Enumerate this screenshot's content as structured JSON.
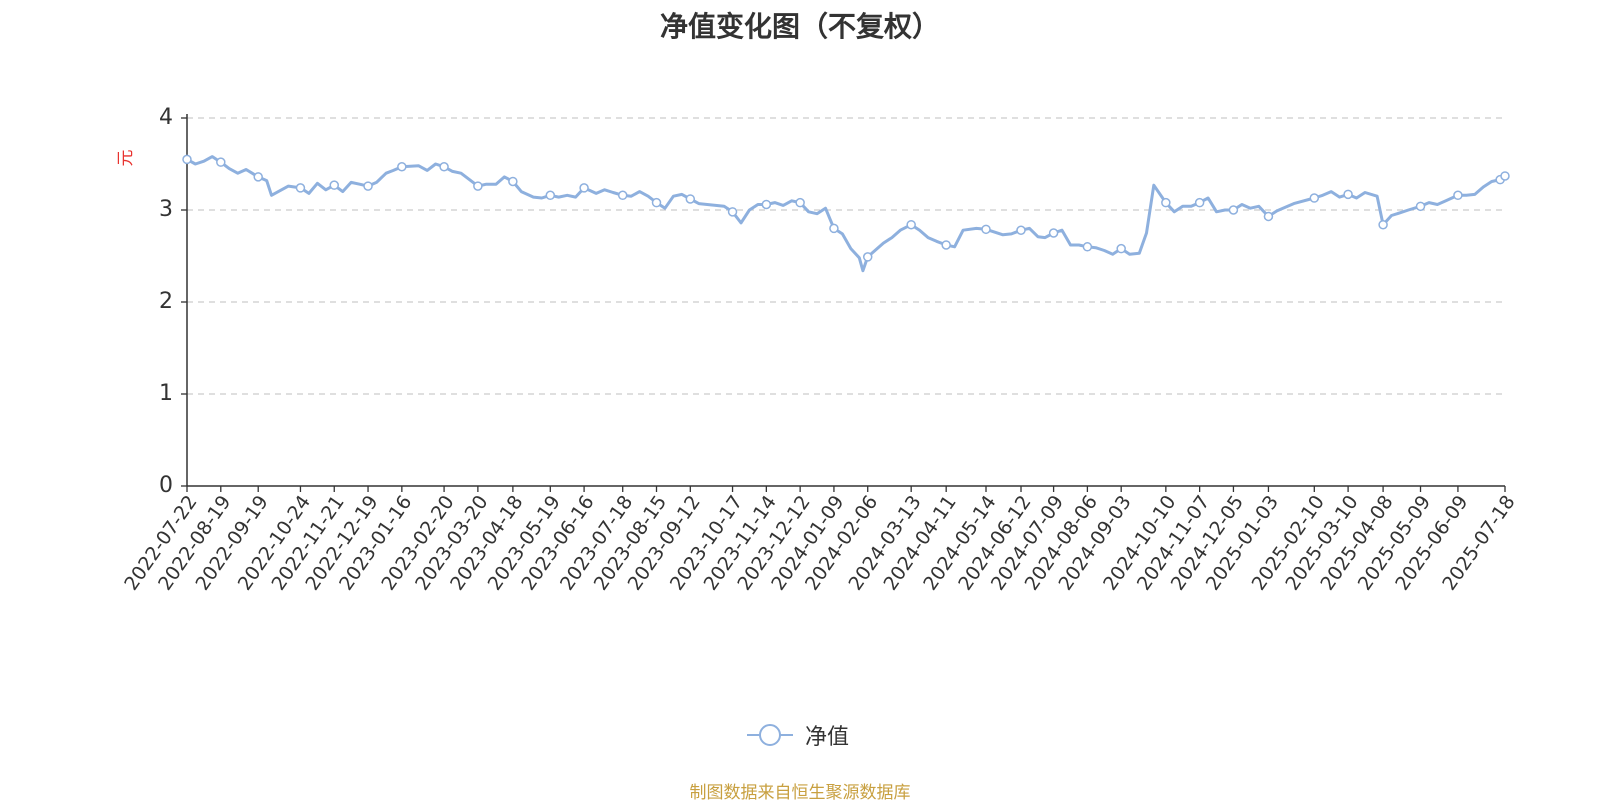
{
  "chart_data": {
    "type": "line",
    "title": "净值变化图（不复权）",
    "ylabel": "元",
    "ylim": [
      0,
      4
    ],
    "yticks": [
      0,
      1,
      2,
      3,
      4
    ],
    "grid": true,
    "legend_position": "bottom-center",
    "x_tick_labels": [
      "2022-07-22",
      "2022-08-19",
      "2022-09-19",
      "2022-10-24",
      "2022-11-21",
      "2022-12-19",
      "2023-01-16",
      "2023-02-20",
      "2023-03-20",
      "2023-04-18",
      "2023-05-19",
      "2023-06-16",
      "2023-07-18",
      "2023-08-15",
      "2023-09-12",
      "2023-10-17",
      "2023-11-14",
      "2023-12-12",
      "2024-01-09",
      "2024-02-06",
      "2024-03-13",
      "2024-04-11",
      "2024-05-14",
      "2024-06-12",
      "2024-07-09",
      "2024-08-06",
      "2024-09-03",
      "2024-10-10",
      "2024-11-07",
      "2024-12-05",
      "2025-01-03",
      "2025-02-10",
      "2025-03-10",
      "2025-04-08",
      "2025-05-09",
      "2025-06-09",
      "2025-07-18"
    ],
    "series": [
      {
        "name": "净值",
        "color": "#8eb0de",
        "points": [
          {
            "x": "2022-07-22",
            "y": 3.55
          },
          {
            "x": "2022-07-29",
            "y": 3.5
          },
          {
            "x": "2022-08-05",
            "y": 3.53
          },
          {
            "x": "2022-08-12",
            "y": 3.58
          },
          {
            "x": "2022-08-19",
            "y": 3.52
          },
          {
            "x": "2022-08-26",
            "y": 3.45
          },
          {
            "x": "2022-09-02",
            "y": 3.4
          },
          {
            "x": "2022-09-09",
            "y": 3.44
          },
          {
            "x": "2022-09-19",
            "y": 3.36
          },
          {
            "x": "2022-09-26",
            "y": 3.32
          },
          {
            "x": "2022-09-30",
            "y": 3.16
          },
          {
            "x": "2022-10-14",
            "y": 3.26
          },
          {
            "x": "2022-10-24",
            "y": 3.24
          },
          {
            "x": "2022-10-31",
            "y": 3.18
          },
          {
            "x": "2022-11-07",
            "y": 3.29
          },
          {
            "x": "2022-11-14",
            "y": 3.22
          },
          {
            "x": "2022-11-21",
            "y": 3.27
          },
          {
            "x": "2022-11-28",
            "y": 3.2
          },
          {
            "x": "2022-12-05",
            "y": 3.3
          },
          {
            "x": "2022-12-12",
            "y": 3.28
          },
          {
            "x": "2022-12-19",
            "y": 3.26
          },
          {
            "x": "2022-12-26",
            "y": 3.3
          },
          {
            "x": "2023-01-03",
            "y": 3.4
          },
          {
            "x": "2023-01-09",
            "y": 3.43
          },
          {
            "x": "2023-01-16",
            "y": 3.47
          },
          {
            "x": "2023-01-30",
            "y": 3.48
          },
          {
            "x": "2023-02-06",
            "y": 3.43
          },
          {
            "x": "2023-02-13",
            "y": 3.5
          },
          {
            "x": "2023-02-20",
            "y": 3.47
          },
          {
            "x": "2023-02-27",
            "y": 3.42
          },
          {
            "x": "2023-03-06",
            "y": 3.4
          },
          {
            "x": "2023-03-13",
            "y": 3.33
          },
          {
            "x": "2023-03-20",
            "y": 3.26
          },
          {
            "x": "2023-03-27",
            "y": 3.28
          },
          {
            "x": "2023-04-04",
            "y": 3.28
          },
          {
            "x": "2023-04-11",
            "y": 3.36
          },
          {
            "x": "2023-04-18",
            "y": 3.31
          },
          {
            "x": "2023-04-25",
            "y": 3.2
          },
          {
            "x": "2023-05-05",
            "y": 3.14
          },
          {
            "x": "2023-05-12",
            "y": 3.13
          },
          {
            "x": "2023-05-19",
            "y": 3.16
          },
          {
            "x": "2023-05-26",
            "y": 3.14
          },
          {
            "x": "2023-06-02",
            "y": 3.16
          },
          {
            "x": "2023-06-09",
            "y": 3.14
          },
          {
            "x": "2023-06-16",
            "y": 3.24
          },
          {
            "x": "2023-06-26",
            "y": 3.18
          },
          {
            "x": "2023-07-03",
            "y": 3.22
          },
          {
            "x": "2023-07-10",
            "y": 3.19
          },
          {
            "x": "2023-07-18",
            "y": 3.16
          },
          {
            "x": "2023-07-25",
            "y": 3.15
          },
          {
            "x": "2023-08-01",
            "y": 3.2
          },
          {
            "x": "2023-08-08",
            "y": 3.15
          },
          {
            "x": "2023-08-15",
            "y": 3.08
          },
          {
            "x": "2023-08-22",
            "y": 3.02
          },
          {
            "x": "2023-08-29",
            "y": 3.15
          },
          {
            "x": "2023-09-05",
            "y": 3.17
          },
          {
            "x": "2023-09-12",
            "y": 3.12
          },
          {
            "x": "2023-09-19",
            "y": 3.07
          },
          {
            "x": "2023-09-26",
            "y": 3.06
          },
          {
            "x": "2023-10-10",
            "y": 3.04
          },
          {
            "x": "2023-10-17",
            "y": 2.98
          },
          {
            "x": "2023-10-24",
            "y": 2.86
          },
          {
            "x": "2023-10-31",
            "y": 3.0
          },
          {
            "x": "2023-11-07",
            "y": 3.06
          },
          {
            "x": "2023-11-14",
            "y": 3.06
          },
          {
            "x": "2023-11-21",
            "y": 3.08
          },
          {
            "x": "2023-11-28",
            "y": 3.05
          },
          {
            "x": "2023-12-05",
            "y": 3.1
          },
          {
            "x": "2023-12-12",
            "y": 3.08
          },
          {
            "x": "2023-12-19",
            "y": 2.98
          },
          {
            "x": "2023-12-26",
            "y": 2.96
          },
          {
            "x": "2024-01-02",
            "y": 3.02
          },
          {
            "x": "2024-01-09",
            "y": 2.8
          },
          {
            "x": "2024-01-16",
            "y": 2.74
          },
          {
            "x": "2024-01-23",
            "y": 2.58
          },
          {
            "x": "2024-01-30",
            "y": 2.48
          },
          {
            "x": "2024-02-02",
            "y": 2.34
          },
          {
            "x": "2024-02-06",
            "y": 2.49
          },
          {
            "x": "2024-02-19",
            "y": 2.64
          },
          {
            "x": "2024-02-26",
            "y": 2.7
          },
          {
            "x": "2024-03-04",
            "y": 2.78
          },
          {
            "x": "2024-03-13",
            "y": 2.84
          },
          {
            "x": "2024-03-20",
            "y": 2.78
          },
          {
            "x": "2024-03-27",
            "y": 2.7
          },
          {
            "x": "2024-04-03",
            "y": 2.66
          },
          {
            "x": "2024-04-11",
            "y": 2.62
          },
          {
            "x": "2024-04-18",
            "y": 2.6
          },
          {
            "x": "2024-04-25",
            "y": 2.78
          },
          {
            "x": "2024-05-06",
            "y": 2.8
          },
          {
            "x": "2024-05-14",
            "y": 2.79
          },
          {
            "x": "2024-05-21",
            "y": 2.76
          },
          {
            "x": "2024-05-28",
            "y": 2.73
          },
          {
            "x": "2024-06-04",
            "y": 2.74
          },
          {
            "x": "2024-06-12",
            "y": 2.78
          },
          {
            "x": "2024-06-19",
            "y": 2.8
          },
          {
            "x": "2024-06-26",
            "y": 2.71
          },
          {
            "x": "2024-07-02",
            "y": 2.7
          },
          {
            "x": "2024-07-09",
            "y": 2.75
          },
          {
            "x": "2024-07-16",
            "y": 2.78
          },
          {
            "x": "2024-07-23",
            "y": 2.62
          },
          {
            "x": "2024-07-30",
            "y": 2.62
          },
          {
            "x": "2024-08-06",
            "y": 2.6
          },
          {
            "x": "2024-08-13",
            "y": 2.59
          },
          {
            "x": "2024-08-20",
            "y": 2.56
          },
          {
            "x": "2024-08-27",
            "y": 2.52
          },
          {
            "x": "2024-09-03",
            "y": 2.58
          },
          {
            "x": "2024-09-10",
            "y": 2.52
          },
          {
            "x": "2024-09-18",
            "y": 2.53
          },
          {
            "x": "2024-09-24",
            "y": 2.75
          },
          {
            "x": "2024-09-30",
            "y": 3.27
          },
          {
            "x": "2024-10-10",
            "y": 3.08
          },
          {
            "x": "2024-10-17",
            "y": 2.98
          },
          {
            "x": "2024-10-24",
            "y": 3.04
          },
          {
            "x": "2024-10-31",
            "y": 3.04
          },
          {
            "x": "2024-11-07",
            "y": 3.08
          },
          {
            "x": "2024-11-14",
            "y": 3.13
          },
          {
            "x": "2024-11-21",
            "y": 2.98
          },
          {
            "x": "2024-11-28",
            "y": 3.0
          },
          {
            "x": "2024-12-05",
            "y": 3.0
          },
          {
            "x": "2024-12-12",
            "y": 3.06
          },
          {
            "x": "2024-12-19",
            "y": 3.02
          },
          {
            "x": "2024-12-26",
            "y": 3.04
          },
          {
            "x": "2025-01-03",
            "y": 2.93
          },
          {
            "x": "2025-01-10",
            "y": 2.99
          },
          {
            "x": "2025-01-17",
            "y": 3.03
          },
          {
            "x": "2025-01-24",
            "y": 3.07
          },
          {
            "x": "2025-02-10",
            "y": 3.13
          },
          {
            "x": "2025-02-17",
            "y": 3.16
          },
          {
            "x": "2025-02-24",
            "y": 3.2
          },
          {
            "x": "2025-03-03",
            "y": 3.14
          },
          {
            "x": "2025-03-10",
            "y": 3.17
          },
          {
            "x": "2025-03-17",
            "y": 3.13
          },
          {
            "x": "2025-03-24",
            "y": 3.19
          },
          {
            "x": "2025-04-03",
            "y": 3.15
          },
          {
            "x": "2025-04-08",
            "y": 2.84
          },
          {
            "x": "2025-04-15",
            "y": 2.94
          },
          {
            "x": "2025-04-22",
            "y": 2.97
          },
          {
            "x": "2025-04-29",
            "y": 3.0
          },
          {
            "x": "2025-05-09",
            "y": 3.04
          },
          {
            "x": "2025-05-16",
            "y": 3.08
          },
          {
            "x": "2025-05-23",
            "y": 3.06
          },
          {
            "x": "2025-05-30",
            "y": 3.1
          },
          {
            "x": "2025-06-09",
            "y": 3.16
          },
          {
            "x": "2025-06-16",
            "y": 3.16
          },
          {
            "x": "2025-06-23",
            "y": 3.17
          },
          {
            "x": "2025-06-30",
            "y": 3.25
          },
          {
            "x": "2025-07-07",
            "y": 3.31
          },
          {
            "x": "2025-07-14",
            "y": 3.33
          },
          {
            "x": "2025-07-18",
            "y": 3.37
          }
        ],
        "markers": [
          "2022-07-22",
          "2022-08-19",
          "2022-09-19",
          "2022-10-24",
          "2022-11-21",
          "2022-12-19",
          "2023-01-16",
          "2023-02-20",
          "2023-03-20",
          "2023-04-18",
          "2023-05-19",
          "2023-06-16",
          "2023-07-18",
          "2023-08-15",
          "2023-09-12",
          "2023-10-17",
          "2023-11-14",
          "2023-12-12",
          "2024-01-09",
          "2024-02-06",
          "2024-03-13",
          "2024-04-11",
          "2024-05-14",
          "2024-06-12",
          "2024-07-09",
          "2024-08-06",
          "2024-09-03",
          "2024-10-10",
          "2024-11-07",
          "2024-12-05",
          "2025-01-03",
          "2025-02-10",
          "2025-03-10",
          "2025-04-08",
          "2025-05-09",
          "2025-06-09",
          "2025-07-14",
          "2025-07-18"
        ]
      }
    ]
  },
  "footer": {
    "source": "制图数据来自恒生聚源数据库"
  },
  "colors": {
    "axis": "#333333",
    "grid": "#cccccc",
    "ylabel": "#e8332f",
    "source": "#c8a040",
    "line": "#8eb0de"
  }
}
